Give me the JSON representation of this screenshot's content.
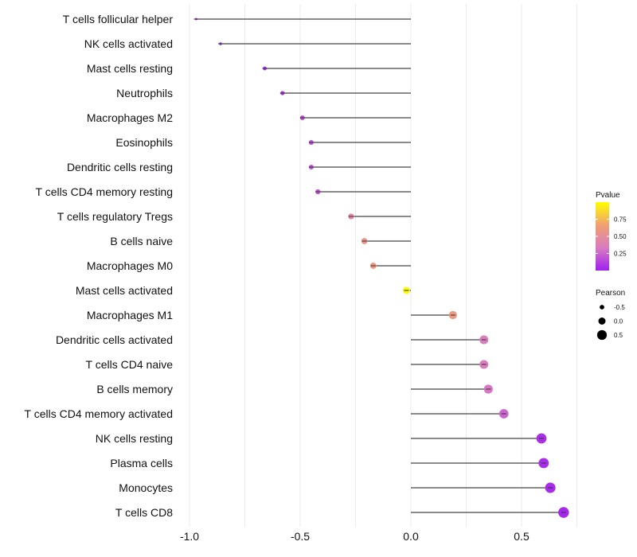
{
  "chart_data": {
    "type": "lollipop",
    "title": "",
    "xlabel": "",
    "ylabel": "",
    "xlim": [
      -1.0,
      0.7
    ],
    "x_ticks": [
      -1.0,
      -0.5,
      0.0,
      0.5
    ],
    "x_tick_labels": [
      "-1.0",
      "-0.5",
      "0.0",
      "0.5"
    ],
    "grid": true,
    "categories": [
      "T cells follicular helper",
      "NK cells activated",
      "Mast cells resting",
      "Neutrophils",
      "Macrophages M2",
      "Eosinophils",
      "Dendritic cells resting",
      "T cells CD4 memory resting",
      "T cells regulatory  Tregs ",
      "B cells naive",
      "Macrophages M0",
      "Mast cells activated",
      "Macrophages M1",
      "Dendritic cells activated",
      "T cells CD4 naive",
      "B cells memory",
      "T cells CD4 memory activated",
      "NK cells resting",
      "Plasma cells",
      "Monocytes",
      "T cells CD8"
    ],
    "values": [
      -0.97,
      -0.86,
      -0.66,
      -0.58,
      -0.49,
      -0.45,
      -0.45,
      -0.42,
      -0.27,
      -0.21,
      -0.17,
      -0.02,
      0.19,
      0.33,
      0.33,
      0.35,
      0.42,
      0.59,
      0.6,
      0.63,
      0.69
    ],
    "pvalues": [
      0.02,
      0.02,
      0.06,
      0.1,
      0.15,
      0.18,
      0.18,
      0.2,
      0.45,
      0.55,
      0.6,
      0.98,
      0.6,
      0.35,
      0.35,
      0.32,
      0.25,
      0.06,
      0.05,
      0.04,
      0.03
    ],
    "legend": {
      "position": "right",
      "color": {
        "title": "Pvalue",
        "ticks": [
          0.25,
          0.5,
          0.75
        ],
        "tick_labels": [
          "0.25",
          "0.50",
          "0.75"
        ],
        "range": [
          0.0,
          1.0
        ],
        "colors": [
          "#a020f0",
          "#d97bc0",
          "#f0a070",
          "#ffff00"
        ]
      },
      "size": {
        "title": "Pearson",
        "entries": [
          "-0.5",
          "0.0",
          "0.5"
        ]
      }
    }
  }
}
